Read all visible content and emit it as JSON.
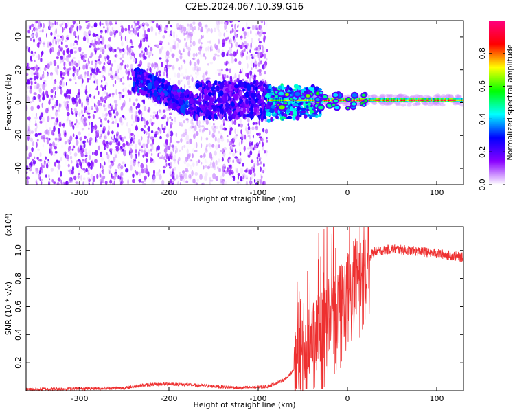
{
  "chart_data": [
    {
      "type": "heatmap",
      "title": "C2E5.2024.067.10.39.G16",
      "xlabel": "Height of straight line (km)",
      "ylabel": "Frequency (Hz)",
      "xlim": [
        -360,
        130
      ],
      "ylim": [
        -50,
        50
      ],
      "xticks": [
        -300,
        -200,
        -100,
        0,
        100
      ],
      "yticks": [
        -40,
        -20,
        0,
        20,
        40
      ],
      "colorbar": {
        "label": "Normalized spectral amplitude",
        "range": [
          0,
          1
        ],
        "ticks": [
          "0.0",
          "0.2",
          "0.4",
          "0.6",
          "0.8"
        ],
        "tick_values": [
          0.0,
          0.2,
          0.4,
          0.6,
          0.8
        ],
        "stops": [
          "#ffffff",
          "#8a00ff",
          "#0000ff",
          "#00ffff",
          "#00ff00",
          "#ffff00",
          "#ff0000",
          "#ff0080"
        ]
      },
      "features": {
        "noise_region_km": [
          -360,
          -90
        ],
        "signal_center_hz": 1.5,
        "dense_cluster_km": [
          -240,
          -170
        ],
        "line_start_km": -90
      }
    },
    {
      "type": "line",
      "title": "",
      "xlabel": "Height of straight line (km)",
      "ylabel": "SNR (10 * v/v)",
      "scale_label": "(x10⁴)",
      "xlim": [
        -360,
        130
      ],
      "ylim": [
        0,
        1.17
      ],
      "xticks": [
        -300,
        -200,
        -100,
        0,
        100
      ],
      "yticks": [
        "0.2",
        "0.4",
        "0.6",
        "0.8",
        "1.0"
      ],
      "ytick_values": [
        0.2,
        0.4,
        0.6,
        0.8,
        1.0
      ],
      "color": "#ee3030",
      "envelope": {
        "x": [
          -360,
          -250,
          -230,
          -200,
          -170,
          -120,
          -90,
          -70,
          -55,
          -45,
          -40,
          -30,
          -20,
          -10,
          0,
          10,
          20,
          30,
          50,
          70,
          100,
          130
        ],
        "y": [
          0.01,
          0.02,
          0.04,
          0.05,
          0.04,
          0.02,
          0.03,
          0.08,
          0.18,
          0.28,
          0.38,
          0.45,
          0.55,
          0.64,
          0.72,
          0.82,
          0.92,
          0.99,
          1.01,
          1.0,
          0.98,
          0.95
        ]
      }
    }
  ]
}
